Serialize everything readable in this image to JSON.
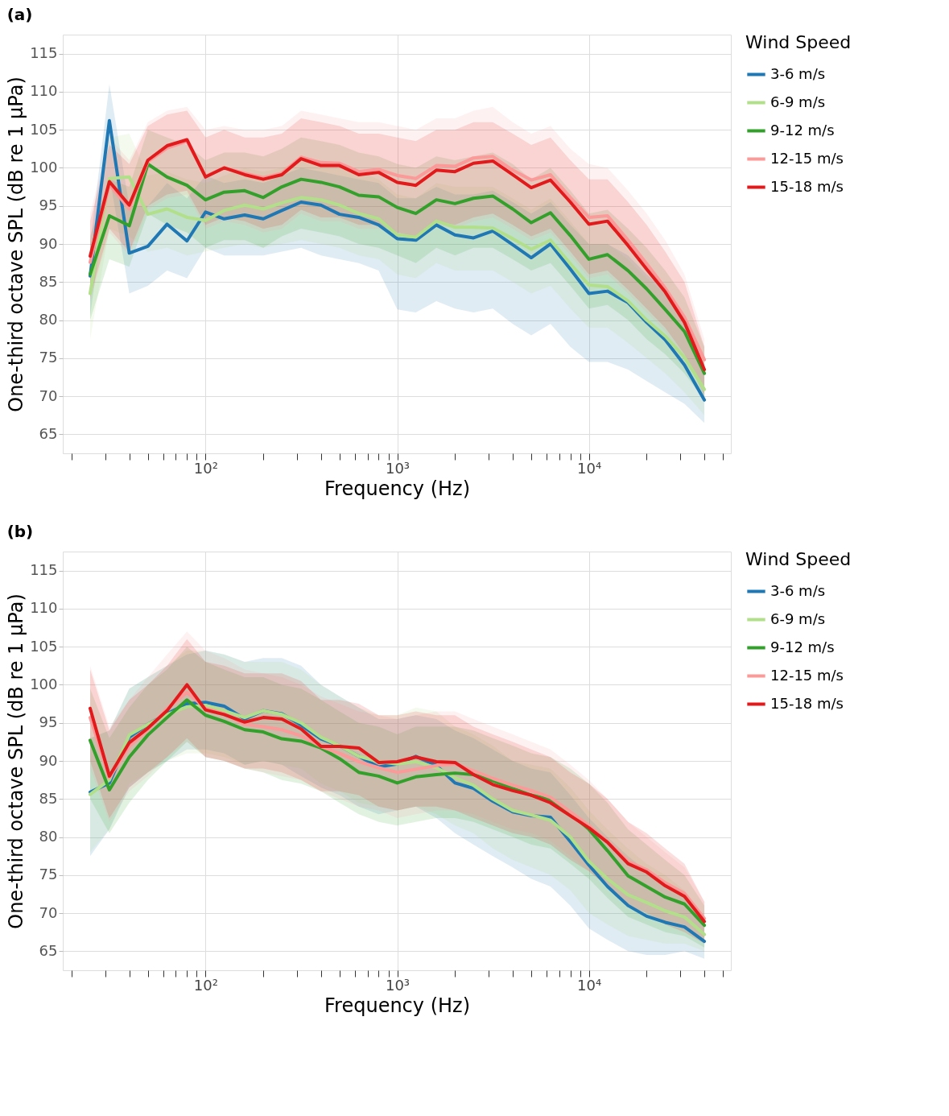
{
  "chart_data": [
    {
      "type": "line",
      "title": "(a)",
      "xlabel": "Frequency (Hz)",
      "ylabel": "One-third octave SPL (dB re 1 μPa)",
      "legend_title": "Wind Speed",
      "legend": "right",
      "grid": true,
      "log": "x",
      "line_style": "solid",
      "xlim": [
        18,
        55000
      ],
      "ylim": [
        62.5,
        117.5
      ],
      "yticks": [
        65,
        70,
        75,
        80,
        85,
        90,
        95,
        100,
        105,
        110,
        115
      ],
      "xticks": [
        {
          "value": 20,
          "label": null
        },
        {
          "value": 30,
          "label": null
        },
        {
          "value": 40,
          "label": null
        },
        {
          "value": 50,
          "label": null
        },
        {
          "value": 60,
          "label": null
        },
        {
          "value": 70,
          "label": null
        },
        {
          "value": 80,
          "label": null
        },
        {
          "value": 90,
          "label": null
        },
        {
          "value": 100,
          "label": "10²"
        },
        {
          "value": 200,
          "label": null
        },
        {
          "value": 300,
          "label": null
        },
        {
          "value": 400,
          "label": null
        },
        {
          "value": 500,
          "label": null
        },
        {
          "value": 600,
          "label": null
        },
        {
          "value": 700,
          "label": null
        },
        {
          "value": 800,
          "label": null
        },
        {
          "value": 900,
          "label": null
        },
        {
          "value": 1000,
          "label": "10³"
        },
        {
          "value": 2000,
          "label": null
        },
        {
          "value": 3000,
          "label": null
        },
        {
          "value": 4000,
          "label": null
        },
        {
          "value": 5000,
          "label": null
        },
        {
          "value": 6000,
          "label": null
        },
        {
          "value": 7000,
          "label": null
        },
        {
          "value": 8000,
          "label": null
        },
        {
          "value": 9000,
          "label": null
        },
        {
          "value": 10000,
          "label": "10⁴"
        },
        {
          "value": 20000,
          "label": null
        },
        {
          "value": 30000,
          "label": null
        },
        {
          "value": 40000,
          "label": null
        },
        {
          "value": 50000,
          "label": null
        }
      ],
      "x": [
        25,
        31.5,
        40,
        50,
        63,
        80,
        100,
        125,
        160,
        200,
        250,
        315,
        400,
        500,
        630,
        800,
        1000,
        1250,
        1600,
        2000,
        2500,
        3150,
        4000,
        5000,
        6300,
        8000,
        10000,
        12500,
        16000,
        20000,
        25000,
        31500,
        40000
      ],
      "series": [
        {
          "name": "3-6 m/s",
          "color": "#1f78b4",
          "values": [
            85.8,
            106.2,
            88.8,
            89.7,
            92.6,
            90.4,
            94.2,
            93.3,
            93.8,
            93.3,
            94.4,
            95.5,
            95.1,
            93.9,
            93.5,
            92.5,
            90.7,
            90.5,
            92.5,
            91.2,
            90.8,
            91.7,
            89.9,
            88.2,
            90.0,
            86.7,
            83.5,
            83.8,
            82.3,
            79.7,
            77.4,
            74.1,
            69.5
          ],
          "lower": [
            80.5,
            99,
            83.5,
            84.5,
            86.5,
            85.5,
            89.5,
            88.5,
            88.5,
            88.5,
            89,
            89.5,
            88.5,
            88,
            87.5,
            86.5,
            81.4,
            81,
            82.5,
            81.5,
            81,
            81.5,
            79.5,
            78,
            79.5,
            76.5,
            74.5,
            74.5,
            73.5,
            72,
            70.5,
            69,
            66.5
          ],
          "upper": [
            90,
            111,
            95,
            95,
            98,
            96,
            99,
            98,
            98.5,
            98,
            99,
            100,
            99.5,
            99,
            98.5,
            98,
            96,
            96,
            97.5,
            96.5,
            96.5,
            97,
            95.5,
            94,
            95.5,
            92.5,
            90,
            90,
            88.5,
            86,
            84,
            80,
            74
          ]
        },
        {
          "name": "6-9 m/s",
          "color": "#b2df8a",
          "values": [
            83.5,
            98.6,
            98.8,
            93.9,
            94.6,
            93.5,
            93.1,
            94.4,
            95.1,
            94.6,
            95.4,
            96.1,
            95.8,
            95.1,
            94.0,
            93.3,
            91.2,
            90.9,
            93.0,
            92.2,
            92.2,
            92.1,
            90.7,
            89.3,
            90.5,
            87.4,
            84.6,
            84.4,
            82.5,
            80.0,
            77.9,
            75.1,
            70.9
          ],
          "lower": [
            77.5,
            92,
            91,
            89,
            89.5,
            88.5,
            89,
            89.5,
            90,
            89.5,
            90,
            90.5,
            90,
            89.5,
            88.5,
            88,
            86,
            85.5,
            87.5,
            86.5,
            86.5,
            86.5,
            85,
            83.5,
            84.5,
            81.5,
            79,
            79,
            77,
            75,
            73,
            70.5,
            67.5
          ],
          "upper": [
            88,
            104,
            104.5,
            99,
            99.5,
            98.5,
            98,
            99,
            100,
            99.5,
            100,
            101,
            100.5,
            100,
            99.5,
            98.5,
            96.5,
            96,
            98,
            97.5,
            97.5,
            97.5,
            96,
            94.5,
            96,
            93,
            90,
            90,
            88,
            85.5,
            83.5,
            80,
            74.5
          ]
        },
        {
          "name": "9-12 m/s",
          "color": "#33a02c",
          "values": [
            86.0,
            93.7,
            92.4,
            100.5,
            98.8,
            97.7,
            95.8,
            96.8,
            97.0,
            96.1,
            97.5,
            98.5,
            98.1,
            97.5,
            96.4,
            96.2,
            94.8,
            94.0,
            95.8,
            95.3,
            96.0,
            96.3,
            94.6,
            92.8,
            94.1,
            91.1,
            88.0,
            88.6,
            86.5,
            84.1,
            81.4,
            78.5,
            73.0
          ],
          "lower": [
            80,
            88,
            87,
            94,
            92.5,
            91.5,
            89.5,
            90.5,
            90.5,
            89.5,
            91,
            92,
            91.5,
            91,
            90,
            89.5,
            88.5,
            87.5,
            89.5,
            88.5,
            89.5,
            89.5,
            88,
            86.5,
            87.5,
            84.5,
            81.5,
            82,
            80,
            77.5,
            75.5,
            73,
            69.5
          ],
          "upper": [
            91,
            98.5,
            97.5,
            105,
            104,
            103,
            101,
            102,
            102,
            101.5,
            102.5,
            104,
            103.5,
            103,
            102,
            101.5,
            100.5,
            100,
            101.5,
            101,
            101.5,
            102,
            100.5,
            98.5,
            100,
            97,
            94,
            94.5,
            92,
            89.5,
            86.5,
            83,
            76.5
          ]
        },
        {
          "name": "12-15 m/s",
          "color": "#fb9a99",
          "values": [
            87.6,
            97.8,
            94.6,
            100.8,
            102.6,
            103.5,
            98.9,
            100.0,
            99.3,
            98.7,
            99.3,
            101.4,
            100.7,
            100.6,
            99.5,
            99.8,
            99.0,
            98.6,
            100.3,
            100.2,
            101.3,
            101.5,
            99.7,
            98.4,
            99.1,
            96.1,
            93.5,
            93.7,
            90.5,
            87.4,
            84.2,
            80.4,
            74.8
          ],
          "lower": [
            82.5,
            91.5,
            88.5,
            94.5,
            96,
            96.5,
            92,
            93,
            92.5,
            91.5,
            92,
            94,
            93,
            93,
            92,
            92,
            91,
            90.5,
            92.5,
            92,
            93,
            93.5,
            92,
            90.5,
            91.5,
            88.5,
            85.5,
            86,
            83.5,
            81,
            78.5,
            75,
            70.5
          ],
          "upper": [
            94,
            104,
            101,
            106,
            107.5,
            108,
            105,
            105.5,
            105,
            105,
            105.5,
            107.5,
            107,
            106.5,
            106,
            106,
            105.5,
            105,
            106.5,
            106.5,
            107.5,
            108,
            106,
            104.5,
            105.5,
            102.5,
            100.5,
            100,
            97,
            94,
            90.5,
            86,
            77.5
          ]
        },
        {
          "name": "15-18 m/s",
          "color": "#e31a1c",
          "values": [
            88.4,
            98.2,
            95.1,
            101.0,
            102.9,
            103.7,
            98.8,
            100.0,
            99.1,
            98.5,
            99.1,
            101.2,
            100.3,
            100.3,
            99.1,
            99.4,
            98.1,
            97.7,
            99.7,
            99.5,
            100.6,
            100.9,
            99.1,
            97.4,
            98.4,
            95.5,
            92.6,
            93.0,
            89.8,
            86.7,
            83.7,
            79.7,
            73.5
          ],
          "lower": [
            83,
            92,
            89,
            95,
            96.5,
            97,
            92.5,
            93.5,
            93,
            92,
            92.5,
            94.5,
            93.5,
            93.5,
            92.5,
            92.5,
            91.5,
            91,
            93,
            92.5,
            93.5,
            94,
            92.5,
            91,
            92,
            89,
            86,
            86.5,
            84,
            81.5,
            79,
            75.5,
            70
          ],
          "upper": [
            93,
            103,
            100.5,
            105.5,
            107,
            107.5,
            104,
            105,
            104,
            104,
            104.5,
            106.5,
            106,
            105.5,
            104.5,
            104.5,
            104,
            103.5,
            105,
            105,
            106,
            106,
            104.5,
            103,
            104,
            101,
            98.5,
            98.5,
            95.5,
            92.5,
            89,
            85,
            76.5
          ]
        }
      ]
    },
    {
      "type": "line",
      "title": "(b)",
      "xlabel": "Frequency (Hz)",
      "ylabel": "One-third octave SPL (dB re 1 μPa)",
      "legend_title": "Wind Speed",
      "legend": "right",
      "grid": true,
      "log": "x",
      "line_style": "solid",
      "xlim": [
        18,
        55000
      ],
      "ylim": [
        62.5,
        117.5
      ],
      "yticks": [
        65,
        70,
        75,
        80,
        85,
        90,
        95,
        100,
        105,
        110,
        115
      ],
      "xticks": [
        {
          "value": 20,
          "label": null
        },
        {
          "value": 30,
          "label": null
        },
        {
          "value": 40,
          "label": null
        },
        {
          "value": 50,
          "label": null
        },
        {
          "value": 60,
          "label": null
        },
        {
          "value": 70,
          "label": null
        },
        {
          "value": 80,
          "label": null
        },
        {
          "value": 90,
          "label": null
        },
        {
          "value": 100,
          "label": "10²"
        },
        {
          "value": 200,
          "label": null
        },
        {
          "value": 300,
          "label": null
        },
        {
          "value": 400,
          "label": null
        },
        {
          "value": 500,
          "label": null
        },
        {
          "value": 600,
          "label": null
        },
        {
          "value": 700,
          "label": null
        },
        {
          "value": 800,
          "label": null
        },
        {
          "value": 900,
          "label": null
        },
        {
          "value": 1000,
          "label": "10³"
        },
        {
          "value": 2000,
          "label": null
        },
        {
          "value": 3000,
          "label": null
        },
        {
          "value": 4000,
          "label": null
        },
        {
          "value": 5000,
          "label": null
        },
        {
          "value": 6000,
          "label": null
        },
        {
          "value": 7000,
          "label": null
        },
        {
          "value": 8000,
          "label": null
        },
        {
          "value": 9000,
          "label": null
        },
        {
          "value": 10000,
          "label": "10⁴"
        },
        {
          "value": 20000,
          "label": null
        },
        {
          "value": 30000,
          "label": null
        },
        {
          "value": 40000,
          "label": null
        },
        {
          "value": 50000,
          "label": null
        }
      ],
      "x": [
        25,
        31.5,
        40,
        50,
        63,
        80,
        100,
        125,
        160,
        200,
        250,
        315,
        400,
        500,
        630,
        800,
        1000,
        1250,
        1600,
        2000,
        2500,
        3150,
        4000,
        5000,
        6300,
        8000,
        10000,
        12500,
        16000,
        20000,
        25000,
        31500,
        40000
      ],
      "series": [
        {
          "name": "3-6 m/s",
          "color": "#1f78b4",
          "values": [
            85.9,
            87.1,
            93.1,
            94.8,
            96.2,
            97.5,
            97.7,
            97.2,
            95.5,
            96.6,
            96.2,
            94.7,
            92.9,
            92.0,
            90.6,
            89.2,
            89.6,
            90.6,
            89.4,
            87.1,
            86.4,
            84.7,
            83.3,
            82.8,
            82.6,
            79.4,
            76.3,
            73.5,
            71.0,
            69.6,
            68.8,
            68.2,
            66.3
          ],
          "lower": [
            77.5,
            81,
            86.5,
            88.5,
            90,
            91.5,
            91.5,
            91,
            89.5,
            90,
            89.5,
            88,
            86.5,
            85.5,
            84,
            83,
            83.5,
            84,
            82.5,
            80.5,
            79,
            77.5,
            76,
            74.5,
            73.5,
            71,
            68,
            66.5,
            65,
            64.5,
            64.5,
            65,
            64
          ],
          "upper": [
            93,
            94,
            99.5,
            101,
            102.5,
            104,
            104.5,
            104,
            103,
            103.5,
            103.5,
            102.5,
            100,
            98.5,
            97,
            95.5,
            95.5,
            96,
            95.5,
            94,
            93,
            91.5,
            90,
            89,
            88.5,
            85.5,
            82.5,
            80,
            77.5,
            75.5,
            74,
            72,
            69
          ]
        },
        {
          "name": "6-9 m/s",
          "color": "#b2df8a",
          "values": [
            85.6,
            87.5,
            93.4,
            94.8,
            96.1,
            97.1,
            97.3,
            96.6,
            95.7,
            96.6,
            96.1,
            95.0,
            93.1,
            92.0,
            90.6,
            89.9,
            89.6,
            89.9,
            89.1,
            87.8,
            86.8,
            85.0,
            83.5,
            82.9,
            82.2,
            80.0,
            76.8,
            74.5,
            72.4,
            71.4,
            70.3,
            69.5,
            67.2
          ],
          "lower": [
            78,
            81,
            87,
            88.5,
            90,
            91,
            91,
            90.5,
            89.5,
            90,
            89.5,
            89,
            87,
            86,
            84.5,
            84,
            83.5,
            84,
            83,
            81.5,
            80.5,
            78.5,
            77,
            76,
            75,
            73,
            70,
            68.5,
            67,
            66.5,
            66,
            66,
            65
          ],
          "upper": [
            93,
            94,
            99.5,
            101,
            102.5,
            104.5,
            104.5,
            104,
            103,
            103,
            103,
            102,
            100,
            98.5,
            97,
            96,
            96,
            97,
            96.5,
            94.5,
            93.5,
            92,
            90,
            89.5,
            89,
            86.5,
            83.5,
            81,
            78.5,
            76.5,
            75,
            73,
            69.5
          ]
        },
        {
          "name": "9-12 m/s",
          "color": "#33a02c",
          "values": [
            92.7,
            86.2,
            90.5,
            93.4,
            95.7,
            98.0,
            96.0,
            95.2,
            94.1,
            93.8,
            92.9,
            92.6,
            91.7,
            90.3,
            88.5,
            88.0,
            87.1,
            87.9,
            88.2,
            88.4,
            88.2,
            87.4,
            86.4,
            85.5,
            84.9,
            83.1,
            81.0,
            78.2,
            74.9,
            73.5,
            72.1,
            71.2,
            68.4
          ],
          "lower": [
            85,
            80.5,
            84.5,
            87.5,
            90,
            92.5,
            90.5,
            90,
            89,
            88.5,
            87.5,
            87,
            86,
            84.5,
            83,
            82,
            81.5,
            82,
            82.5,
            82.5,
            82,
            81,
            80,
            79,
            78.5,
            76.5,
            74.5,
            72,
            69.5,
            68.5,
            67.5,
            67,
            65.5
          ],
          "upper": [
            99.5,
            93,
            97,
            100,
            102,
            105,
            103,
            102,
            101,
            101,
            100,
            99.5,
            98,
            96.5,
            95,
            94.5,
            93.5,
            94.5,
            94.5,
            94.5,
            94,
            93,
            92,
            91,
            90.5,
            89,
            87,
            84.5,
            81,
            79,
            77,
            75,
            71
          ]
        },
        {
          "name": "12-15 m/s",
          "color": "#fb9a99",
          "values": [
            95.7,
            87.8,
            91.9,
            94.1,
            96.9,
            99.0,
            96.9,
            96.2,
            94.8,
            94.5,
            94.1,
            93.3,
            91.9,
            91.0,
            89.9,
            89.1,
            88.5,
            88.9,
            89.4,
            89.6,
            88.7,
            87.7,
            86.8,
            86.1,
            85.2,
            83.3,
            81.5,
            79.4,
            76.8,
            75.7,
            74.0,
            72.6,
            69.3
          ],
          "lower": [
            89,
            82,
            86,
            88,
            90.5,
            92.5,
            90.5,
            90,
            89,
            88.5,
            88,
            87.5,
            86,
            85,
            84,
            83.5,
            82.5,
            83,
            83.5,
            83.5,
            83,
            82,
            81,
            80.5,
            79.5,
            77.5,
            75.5,
            73.5,
            71,
            70,
            69,
            68,
            66.5
          ],
          "upper": [
            102.5,
            94.5,
            98,
            101,
            104,
            107,
            104.5,
            103.5,
            102,
            101.5,
            101,
            100,
            98.5,
            97.5,
            96.5,
            96,
            95.5,
            96,
            96.5,
            96.5,
            95.5,
            94.5,
            93.5,
            92.5,
            91.5,
            89.5,
            87.5,
            85,
            82,
            80,
            78,
            76,
            71.5
          ]
        },
        {
          "name": "15-18 m/s",
          "color": "#e31a1c",
          "values": [
            96.9,
            88.0,
            92.4,
            94.3,
            96.6,
            100.0,
            96.7,
            96.1,
            95.1,
            95.7,
            95.5,
            94.2,
            91.9,
            91.9,
            91.7,
            89.8,
            89.9,
            90.5,
            89.9,
            89.8,
            88.2,
            86.9,
            86.1,
            85.5,
            84.5,
            82.8,
            81.2,
            79.3,
            76.5,
            75.4,
            73.6,
            72.2,
            68.9
          ],
          "lower": [
            90,
            82.5,
            86.5,
            88.5,
            90.5,
            93,
            90.5,
            90,
            89,
            89,
            88.5,
            87.5,
            86,
            86,
            85.5,
            84,
            83.5,
            84,
            84,
            83.5,
            82.5,
            81.5,
            80.5,
            80,
            79,
            77,
            75.5,
            73.5,
            71,
            70,
            68.5,
            67.5,
            66
          ],
          "upper": [
            102,
            94,
            98,
            100,
            102.5,
            106,
            103,
            102.5,
            101.5,
            101.5,
            101.5,
            100.5,
            98,
            98,
            97.5,
            96,
            96,
            96.5,
            96,
            96,
            94.5,
            93.5,
            92.5,
            91.5,
            90.5,
            88.5,
            87,
            85,
            82,
            80.5,
            78.5,
            76.5,
            71.5
          ]
        }
      ]
    }
  ]
}
